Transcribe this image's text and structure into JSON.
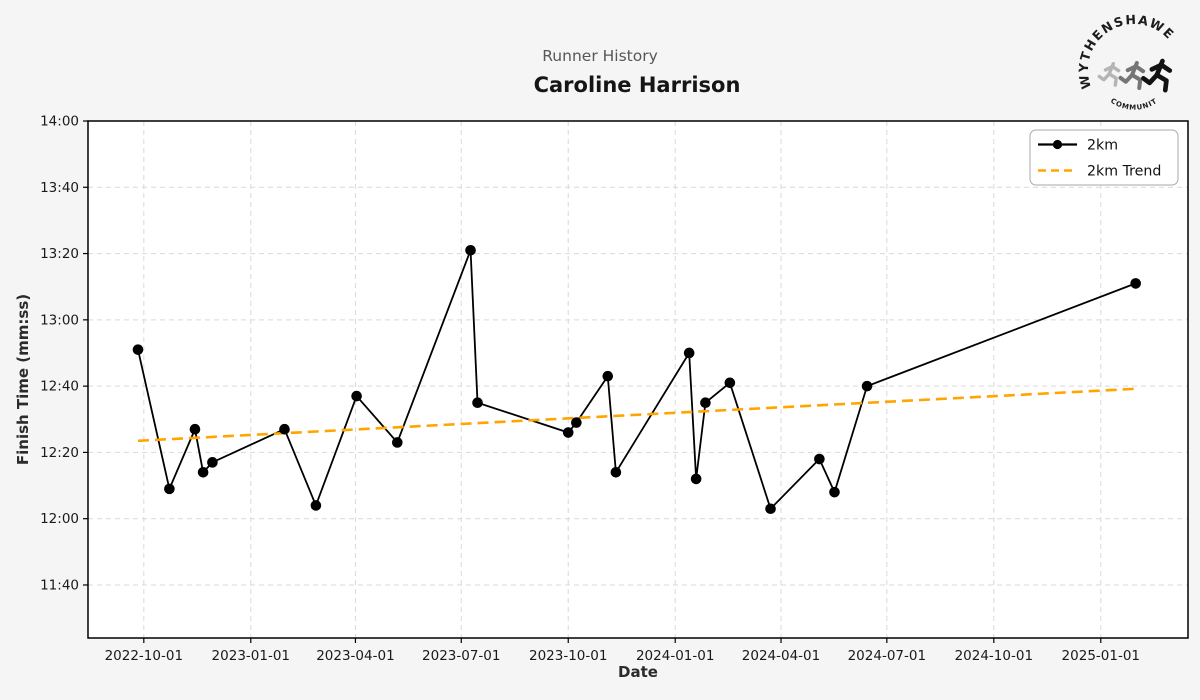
{
  "header": {
    "suptitle": "Runner History",
    "title": "Caroline Harrison"
  },
  "logo": {
    "top_text": "WYTHENSHAWE",
    "bottom_text": "COMMUNITY RUN"
  },
  "colors": {
    "background": "#f5f5f5",
    "plot_background": "#ffffff",
    "grid": "#d9d9d9",
    "axis": "#000000",
    "tick_label": "#1a1a1a",
    "series_2km": "#000000",
    "trend": "#FFA500",
    "legend_border": "#aaaaaa"
  },
  "chart_data": {
    "type": "line",
    "title": "Caroline Harrison",
    "suptitle": "Runner History",
    "xlabel": "Date",
    "ylabel": "Finish Time (mm:ss)",
    "grid": true,
    "xlim": [
      "2022-08-14",
      "2025-03-17"
    ],
    "ylim": [
      "11:24",
      "14:00"
    ],
    "x_ticks": [
      "2022-10-01",
      "2023-01-01",
      "2023-04-01",
      "2023-07-01",
      "2023-10-01",
      "2024-01-01",
      "2024-04-01",
      "2024-07-01",
      "2024-10-01",
      "2025-01-01"
    ],
    "y_ticks": [
      "14:00",
      "13:40",
      "13:20",
      "13:00",
      "12:40",
      "12:20",
      "12:00",
      "11:40"
    ],
    "legend": {
      "position": "upper right",
      "entries": [
        {
          "label": "2km",
          "style": "solid-marker",
          "color": "#000000"
        },
        {
          "label": "2km Trend",
          "style": "dashed",
          "color": "#FFA500"
        }
      ]
    },
    "series": [
      {
        "name": "2km",
        "style": "line+markers",
        "color": "#000000",
        "points": [
          {
            "date": "2022-09-26",
            "time": "12:51"
          },
          {
            "date": "2022-10-23",
            "time": "12:09"
          },
          {
            "date": "2022-11-14",
            "time": "12:27"
          },
          {
            "date": "2022-11-21",
            "time": "12:14"
          },
          {
            "date": "2022-11-29",
            "time": "12:17"
          },
          {
            "date": "2023-01-30",
            "time": "12:27"
          },
          {
            "date": "2023-02-26",
            "time": "12:04"
          },
          {
            "date": "2023-04-02",
            "time": "12:37"
          },
          {
            "date": "2023-05-07",
            "time": "12:23"
          },
          {
            "date": "2023-07-09",
            "time": "13:21"
          },
          {
            "date": "2023-07-15",
            "time": "12:35"
          },
          {
            "date": "2023-10-01",
            "time": "12:26"
          },
          {
            "date": "2023-10-08",
            "time": "12:29"
          },
          {
            "date": "2023-11-04",
            "time": "12:43"
          },
          {
            "date": "2023-11-11",
            "time": "12:14"
          },
          {
            "date": "2024-01-13",
            "time": "12:50"
          },
          {
            "date": "2024-01-19",
            "time": "12:12"
          },
          {
            "date": "2024-01-27",
            "time": "12:35"
          },
          {
            "date": "2024-02-17",
            "time": "12:41"
          },
          {
            "date": "2024-03-23",
            "time": "12:03"
          },
          {
            "date": "2024-05-04",
            "time": "12:18"
          },
          {
            "date": "2024-05-17",
            "time": "12:08"
          },
          {
            "date": "2024-06-14",
            "time": "12:40"
          },
          {
            "date": "2025-01-31",
            "time": "13:11"
          }
        ]
      },
      {
        "name": "2km Trend",
        "style": "dashed-line",
        "color": "#FFA500",
        "points": [
          {
            "date": "2022-09-26",
            "time": "12:23.5"
          },
          {
            "date": "2025-01-31",
            "time": "12:39.2"
          }
        ]
      }
    ]
  }
}
